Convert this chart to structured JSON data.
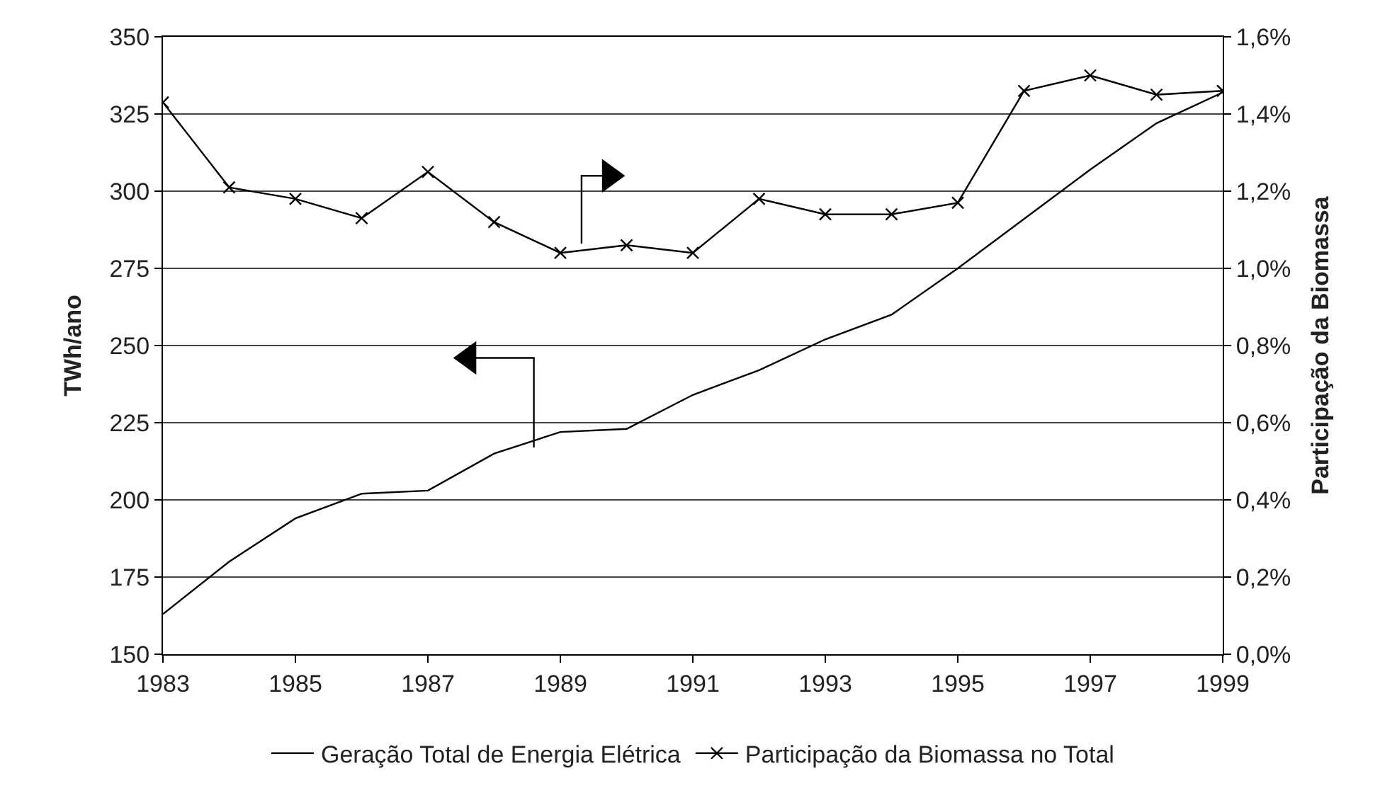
{
  "chart_data": {
    "type": "line",
    "ylabel": "TWh/ano",
    "y2label": "Participação da Biomassa",
    "x": [
      1983,
      1984,
      1985,
      1986,
      1987,
      1988,
      1989,
      1990,
      1991,
      1992,
      1993,
      1994,
      1995,
      1996,
      1997,
      1998,
      1999
    ],
    "series": [
      {
        "name": "Geração Total de Energia Elétrica",
        "color": "#000000",
        "marker": "none",
        "values": [
          163,
          180,
          194,
          202,
          203,
          215,
          222,
          223,
          234,
          242,
          252,
          260,
          275,
          291,
          307,
          322,
          332
        ]
      },
      {
        "name": "Participação da Biomassa no Total",
        "color": "#000000",
        "marker": "cross",
        "axis": "y2",
        "values": [
          1.43,
          1.21,
          1.18,
          1.13,
          1.25,
          1.12,
          1.04,
          1.06,
          1.04,
          1.18,
          1.14,
          1.14,
          1.17,
          1.46,
          1.5,
          1.45,
          1.46
        ]
      }
    ],
    "xlim": [
      1983,
      1999
    ],
    "xticks": [
      1983,
      1985,
      1987,
      1989,
      1991,
      1993,
      1995,
      1997,
      1999
    ],
    "ylim": [
      150,
      350
    ],
    "yticks": [
      150,
      175,
      200,
      225,
      250,
      275,
      300,
      325,
      350
    ],
    "y2lim": [
      0,
      1.6
    ],
    "y2ticks": [
      {
        "value": 0,
        "label": "0,0%"
      },
      {
        "value": 0.2,
        "label": "0,2%"
      },
      {
        "value": 0.4,
        "label": "0,4%"
      },
      {
        "value": 0.6,
        "label": "0,6%"
      },
      {
        "value": 0.8,
        "label": "0,8%"
      },
      {
        "value": 1.0,
        "label": "1,0%"
      },
      {
        "value": 1.2,
        "label": "1,2%"
      },
      {
        "value": 1.4,
        "label": "1,4%"
      },
      {
        "value": 1.6,
        "label": "1,6%"
      }
    ],
    "grid": "y",
    "legend": "bottom",
    "line_style": "solid"
  }
}
